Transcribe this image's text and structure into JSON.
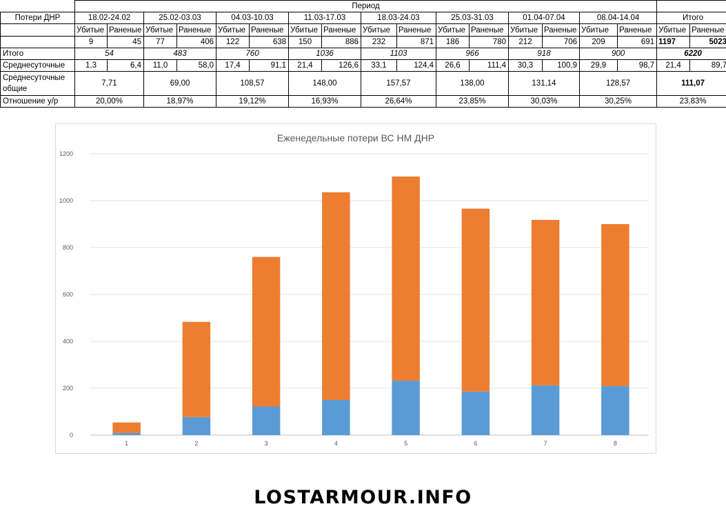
{
  "table": {
    "header_label": "Потери ДНР",
    "period_label": "Период",
    "col_killed": "Убитые",
    "col_wounded": "Раненые",
    "periods": [
      "18.02-24.02",
      "25.02-03.03",
      "04.03-10.03",
      "11.03-17.03",
      "18.03-24.03",
      "25.03-31.03",
      "01.04-07.04",
      "08.04-14.04"
    ],
    "total_col": "Итого",
    "killed": [
      "9",
      "77",
      "122",
      "150",
      "232",
      "186",
      "212",
      "209"
    ],
    "wounded": [
      "45",
      "406",
      "638",
      "886",
      "871",
      "780",
      "706",
      "691"
    ],
    "total_killed": "1197",
    "total_wounded": "5023",
    "row_total_label": "Итого",
    "totals": [
      "54",
      "483",
      "760",
      "1036",
      "1103",
      "966",
      "918",
      "900"
    ],
    "grand_total": "6220",
    "row_daily_label": "Среднесуточные",
    "daily_killed": [
      "1,3",
      "11,0",
      "17,4",
      "21,4",
      "33,1",
      "26,6",
      "30,3",
      "29,9"
    ],
    "daily_wounded": [
      "6,4",
      "58,0",
      "91,1",
      "126,6",
      "124,4",
      "111,4",
      "100,9",
      "98,7"
    ],
    "daily_total_killed": "21,4",
    "daily_total_wounded": "89,7",
    "row_daily_total_label": "Среднесуточные общие",
    "daily_totals": [
      "7,71",
      "69,00",
      "108,57",
      "148,00",
      "157,57",
      "138,00",
      "131,14",
      "128,57"
    ],
    "daily_grand_total": "111,07",
    "row_ratio_label": "Отношение у/р",
    "ratios": [
      "20,00%",
      "18,97%",
      "19,12%",
      "16,93%",
      "26,64%",
      "23,85%",
      "30,03%",
      "30,25%"
    ],
    "ratio_total": "23,83%"
  },
  "chart_data": {
    "type": "bar",
    "stacked": true,
    "title": "Еженедельные потери ВС НМ ДНР",
    "categories": [
      "1",
      "2",
      "3",
      "4",
      "5",
      "6",
      "7",
      "8"
    ],
    "series": [
      {
        "values": [
          9,
          77,
          122,
          150,
          232,
          186,
          212,
          209
        ],
        "color": "#5b9bd5"
      },
      {
        "values": [
          45,
          406,
          638,
          886,
          871,
          780,
          706,
          691
        ],
        "color": "#ed7d31"
      }
    ],
    "ylim": [
      0,
      1200
    ],
    "yticks": [
      "0",
      "200",
      "400",
      "600",
      "800",
      "1000",
      "1200"
    ],
    "grid": true,
    "legend": "none"
  },
  "watermark": "LOSTARMOUR.INFO"
}
